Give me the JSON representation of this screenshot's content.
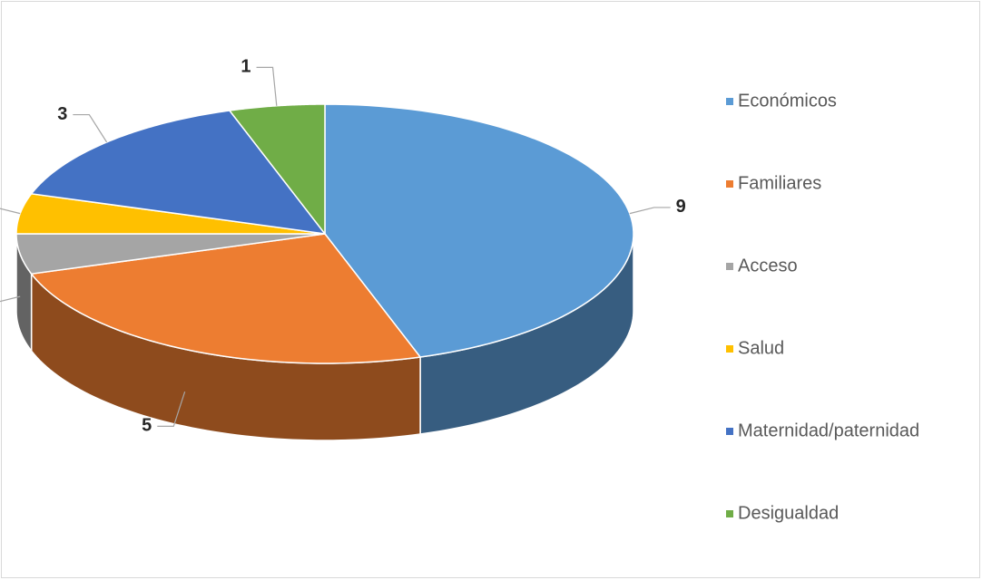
{
  "chart_data": {
    "type": "pie3d",
    "categories": [
      "Económicos",
      "Familiares",
      "Acceso",
      "Salud",
      "Maternidad/paternidad",
      "Desigualdad"
    ],
    "values": [
      9,
      5,
      1,
      1,
      3,
      1
    ],
    "colors": [
      "#5b9bd5",
      "#ed7d31",
      "#a5a5a5",
      "#ffc000",
      "#4472c4",
      "#70ad47"
    ],
    "legend": "right"
  }
}
